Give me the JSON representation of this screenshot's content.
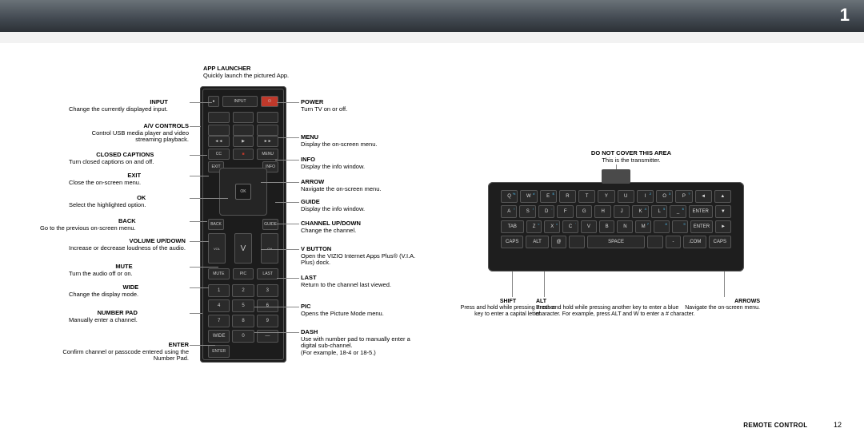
{
  "page_number": "1",
  "footer_page": "12",
  "footer_label": "REMOTE CONTROL",
  "app_launcher": {
    "heading": "App Launcher",
    "desc": "Quickly launch the pictured App."
  },
  "left": {
    "input": {
      "heading": "Input",
      "desc": "Change the currently displayed input."
    },
    "av": {
      "heading": "A/V Controls",
      "desc": "Control USB media player and video streaming playback."
    },
    "cc": {
      "heading": "Closed Captions",
      "desc": "Turn closed captions on and off."
    },
    "exit": {
      "heading": "Exit",
      "desc": "Close the on-screen menu."
    },
    "ok": {
      "heading": "OK",
      "desc": "Select the highlighted option."
    },
    "back": {
      "heading": "Back",
      "desc": "Go to the previous on-screen menu."
    },
    "vol": {
      "heading": "Volume Up/Down",
      "desc": "Increase or decrease loudness of the audio."
    },
    "mute": {
      "heading": "Mute",
      "desc": "Turn the audio off or on."
    },
    "wide": {
      "heading": "Wide",
      "desc": "Change the display mode."
    },
    "numpad": {
      "heading": "Number Pad",
      "desc": "Manually enter a channel."
    },
    "enter": {
      "heading": "Enter",
      "desc": "Confirm channel or passcode entered using the Number Pad."
    }
  },
  "right": {
    "power": {
      "heading": "Power",
      "desc": "Turn TV on or off."
    },
    "menu": {
      "heading": "Menu",
      "desc": "Display the on-screen menu."
    },
    "info": {
      "heading": "Info",
      "desc": "Display the info window."
    },
    "arrow": {
      "heading": "Arrow",
      "desc": "Navigate the on-screen menu."
    },
    "guide": {
      "heading": "Guide",
      "desc": "Display the info window."
    },
    "chud": {
      "heading": "Channel Up/Down",
      "desc": "Change the channel."
    },
    "vbutton": {
      "heading": "V Button",
      "desc": "Open the VIZIO Internet Apps Plus® (V.I.A. Plus) dock."
    },
    "last": {
      "heading": "Last",
      "desc": "Return to the channel last viewed."
    },
    "pic": {
      "heading": "Pic",
      "desc": "Opens the Picture Mode menu."
    },
    "dash": {
      "heading": "Dash",
      "desc": "Use with number pad to manually enter a digital sub-channel.",
      "note": "(For example, 18-4 or 18-5.)"
    }
  },
  "kb_header": {
    "heading": "Do not cover this area",
    "desc": "This is the transmitter."
  },
  "kb": {
    "shift": {
      "heading": "Shift",
      "desc": "Press and hold while pressing another key to enter a capital letter."
    },
    "alt": {
      "heading": "Alt",
      "desc": "Press and hold while pressing another key to enter a blue character. For example, press ALT and W to enter a # character."
    },
    "arrows": {
      "heading": "Arrows",
      "desc": "Navigate the on-screen menu."
    }
  },
  "numpad_keys": [
    "1",
    "2",
    "3",
    "4",
    "5",
    "6",
    "7",
    "8",
    "9",
    "WIDE",
    "0",
    "—",
    "ENTER"
  ],
  "kbrows": [
    [
      "Q%",
      "W#",
      "E$",
      "R",
      "T",
      "Y",
      "U",
      "I2",
      "O3",
      "P?",
      "◄",
      "▲"
    ],
    [
      "A!",
      "S/",
      "D:",
      "F",
      "G",
      "H",
      "J",
      "K4",
      "L5",
      "_6",
      "ENTER",
      "▼"
    ],
    [
      "TAB",
      "Z<",
      "X>",
      "C'",
      "V",
      "B",
      "N",
      "M7",
      " 8",
      " 9",
      "ENTER",
      "►"
    ],
    [
      "CAPS",
      "ALT",
      "@",
      " ",
      "SPACE",
      " ",
      "-",
      ".COM",
      "CAPS"
    ]
  ],
  "colors": {
    "topbar_from": "#6a7278",
    "topbar_to": "#2c3136",
    "remote_body": "#1c1c1c",
    "key_bg": "#2a2a2a",
    "key_border": "#555",
    "alt_text": "#4fc3f7"
  }
}
